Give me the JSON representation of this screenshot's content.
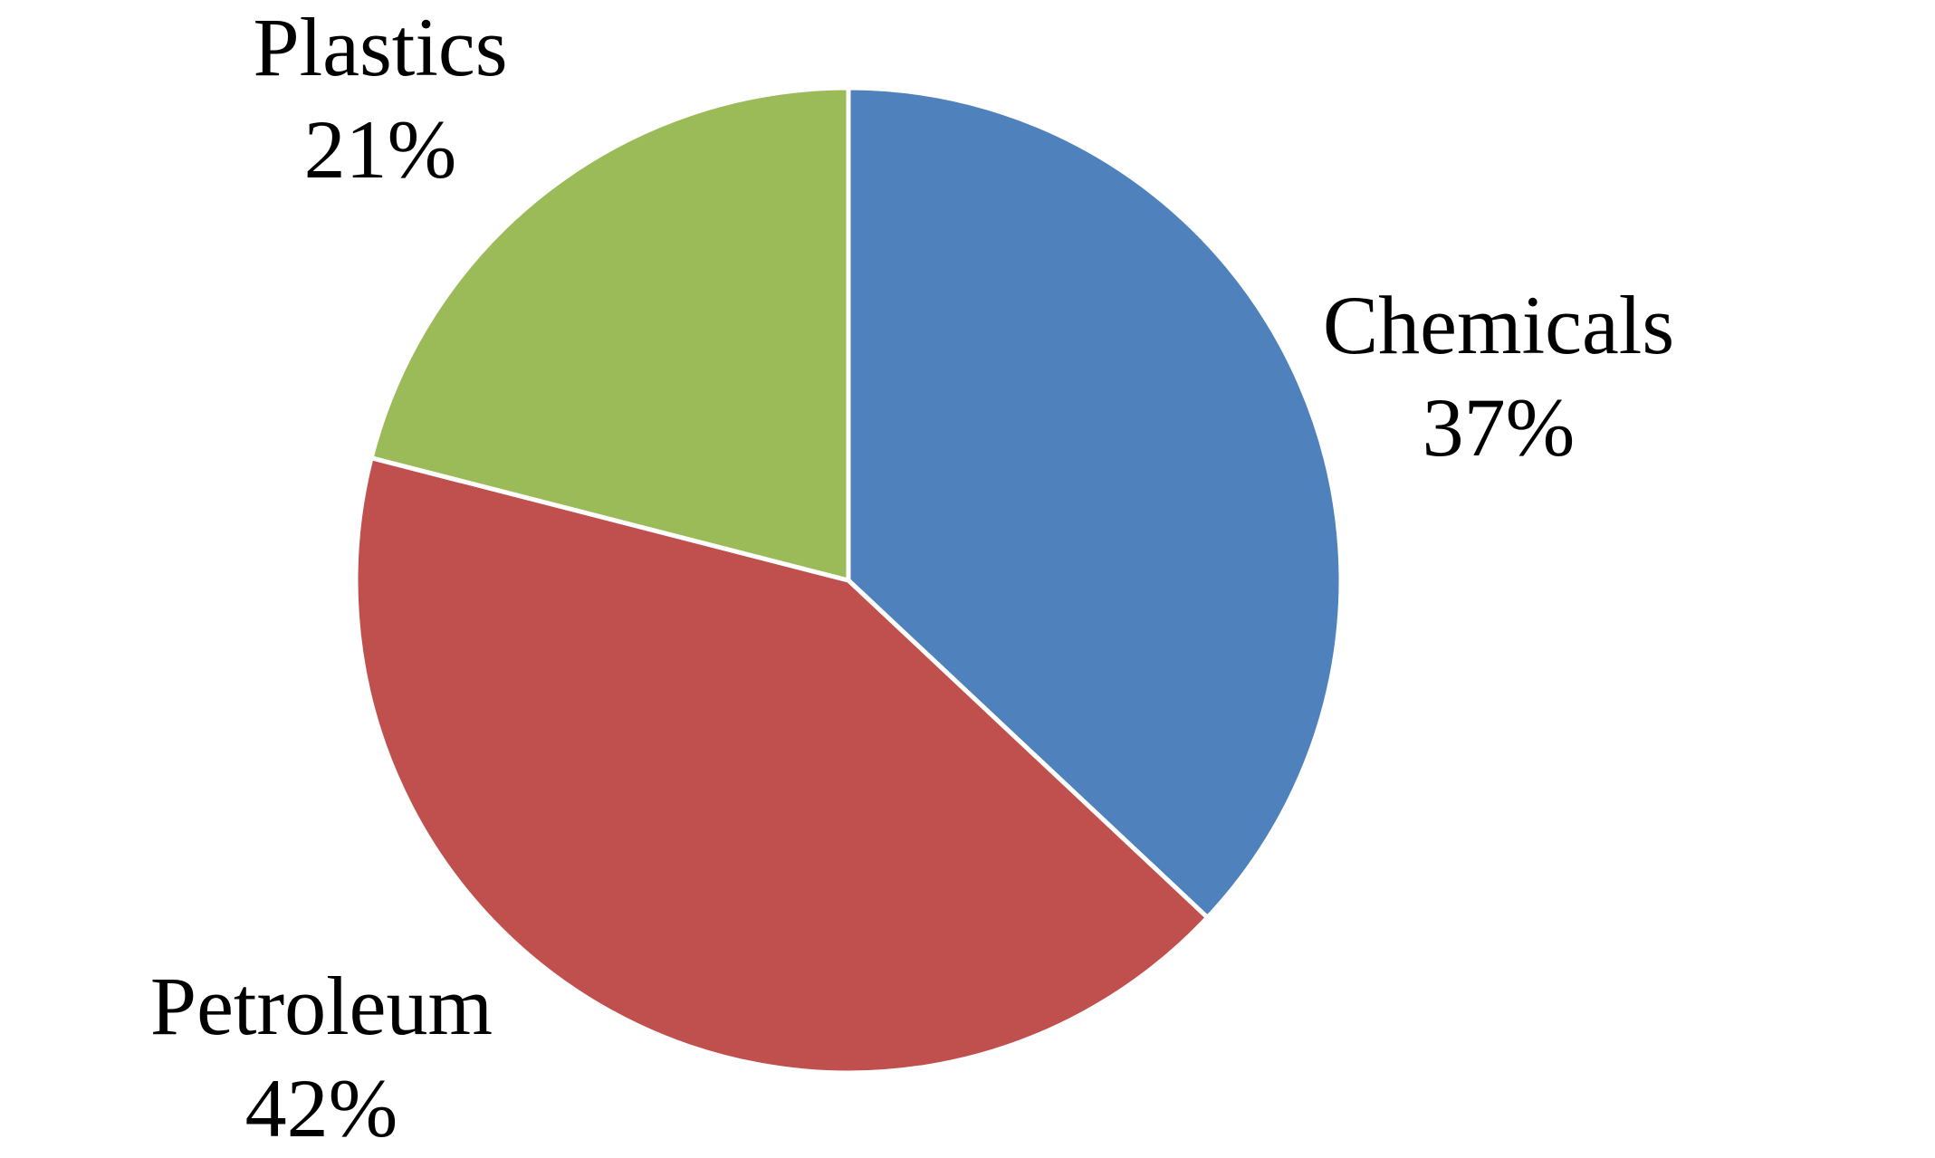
{
  "chart_data": {
    "type": "pie",
    "categories": [
      "Chemicals",
      "Petroleum",
      "Plastics"
    ],
    "values": [
      37,
      42,
      21
    ],
    "value_labels": [
      "37%",
      "42%",
      "21%"
    ],
    "colors": [
      "#4f81bd",
      "#c0504d",
      "#9bbb59"
    ]
  }
}
